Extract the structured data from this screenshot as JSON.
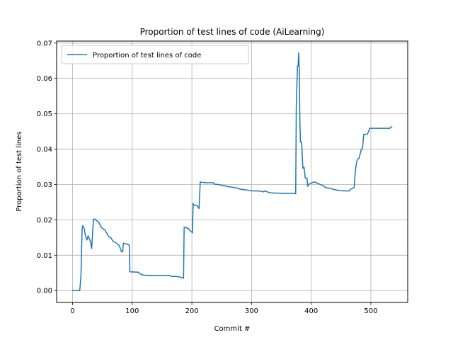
{
  "chart_data": {
    "type": "line",
    "title": "Proportion of test lines of code (AiLearning)",
    "xlabel": "Commit #",
    "ylabel": "Proportion of test lines",
    "xlim": [
      -26.75,
      561.75
    ],
    "ylim": [
      -0.00336,
      0.07056
    ],
    "xticks": [
      0,
      100,
      200,
      300,
      400,
      500
    ],
    "yticks": [
      0.0,
      0.01,
      0.02,
      0.03,
      0.04,
      0.05,
      0.06,
      0.07
    ],
    "xtick_labels": [
      "0",
      "100",
      "200",
      "300",
      "400",
      "500"
    ],
    "ytick_labels": [
      "0.00",
      "0.01",
      "0.02",
      "0.03",
      "0.04",
      "0.05",
      "0.06",
      "0.07"
    ],
    "grid": true,
    "legend_position": "top-left",
    "series": [
      {
        "name": "Proportion of test lines of code",
        "color": "#1f77b4",
        "x": [
          0,
          12,
          14,
          16,
          17,
          19,
          22,
          24,
          26,
          28,
          30,
          32,
          35,
          38,
          40,
          44,
          48,
          50,
          54,
          58,
          61,
          64,
          68,
          72,
          78,
          82,
          84,
          85,
          88,
          92,
          95,
          96,
          110,
          112,
          118,
          124,
          130,
          150,
          162,
          166,
          172,
          178,
          183,
          186,
          187,
          190,
          192,
          194,
          198,
          200,
          201,
          202,
          203,
          204,
          206,
          208,
          210,
          212,
          214,
          218,
          226,
          236,
          238,
          244,
          250,
          256,
          260,
          266,
          268,
          276,
          280,
          290,
          300,
          306,
          310,
          316,
          320,
          322,
          330,
          336,
          340,
          350,
          360,
          370,
          374,
          375,
          377,
          378,
          379,
          380,
          381,
          382,
          384,
          386,
          388,
          390,
          393,
          394,
          397,
          398,
          404,
          406,
          410,
          415,
          420,
          424,
          428,
          432,
          440,
          444,
          448,
          454,
          458,
          464,
          466,
          470,
          472,
          474,
          476,
          478,
          480,
          484,
          486,
          488,
          492,
          494,
          496,
          498,
          500,
          520,
          530,
          532,
          534,
          535
        ],
        "y": [
          0.0,
          0.0,
          0.004,
          0.0175,
          0.0184,
          0.0178,
          0.0152,
          0.0143,
          0.0155,
          0.0147,
          0.0138,
          0.0119,
          0.0202,
          0.0202,
          0.0198,
          0.0193,
          0.0179,
          0.0176,
          0.0172,
          0.016,
          0.0152,
          0.015,
          0.0139,
          0.0136,
          0.0128,
          0.011,
          0.0109,
          0.0134,
          0.0133,
          0.0131,
          0.0128,
          0.0053,
          0.0052,
          0.0048,
          0.0044,
          0.0043,
          0.0043,
          0.0043,
          0.0043,
          0.004,
          0.004,
          0.0039,
          0.0037,
          0.0035,
          0.0179,
          0.0179,
          0.0176,
          0.0176,
          0.0168,
          0.0165,
          0.0163,
          0.0247,
          0.0241,
          0.0242,
          0.0241,
          0.0241,
          0.0237,
          0.0232,
          0.0307,
          0.0306,
          0.0305,
          0.0305,
          0.0301,
          0.03,
          0.0298,
          0.0296,
          0.0294,
          0.0293,
          0.0292,
          0.029,
          0.0287,
          0.0285,
          0.0282,
          0.0282,
          0.0282,
          0.0281,
          0.0279,
          0.0282,
          0.0277,
          0.0276,
          0.0276,
          0.0275,
          0.0275,
          0.0275,
          0.0274,
          0.0522,
          0.0635,
          0.0635,
          0.0672,
          0.0625,
          0.048,
          0.042,
          0.042,
          0.0346,
          0.0349,
          0.0318,
          0.0318,
          0.0295,
          0.0302,
          0.0302,
          0.0307,
          0.0307,
          0.0304,
          0.03,
          0.0297,
          0.0291,
          0.029,
          0.0289,
          0.0285,
          0.0284,
          0.0283,
          0.0282,
          0.0282,
          0.0282,
          0.0287,
          0.0289,
          0.0292,
          0.0338,
          0.0363,
          0.0372,
          0.0373,
          0.04,
          0.0401,
          0.0442,
          0.0442,
          0.0442,
          0.0449,
          0.0459,
          0.0459,
          0.0459,
          0.0459,
          0.0459,
          0.0463,
          0.0463
        ]
      }
    ]
  }
}
